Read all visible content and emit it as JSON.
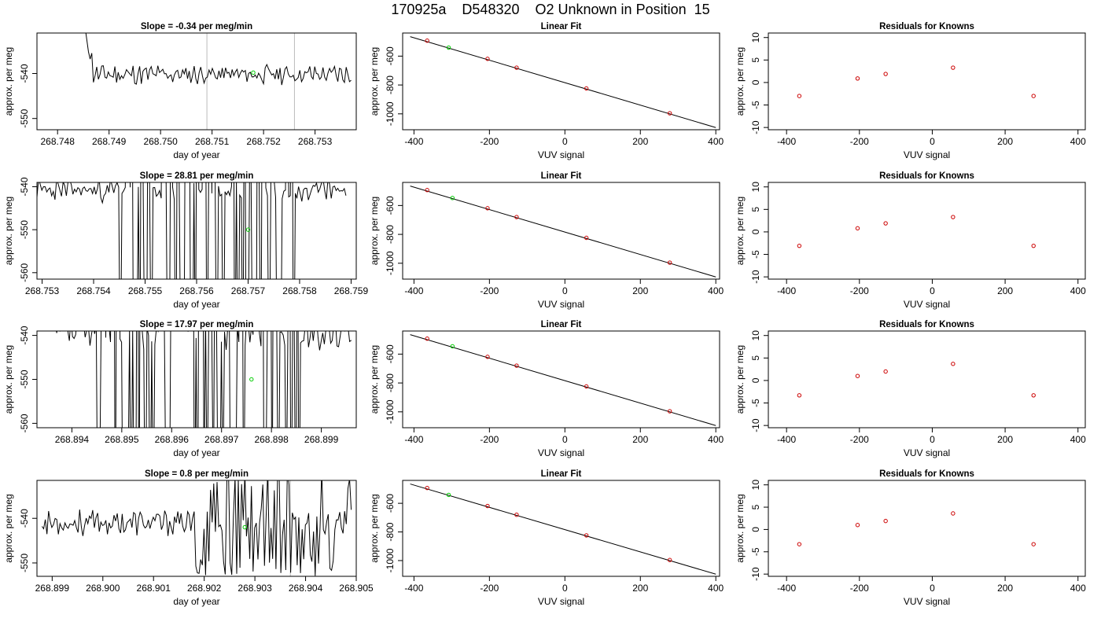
{
  "header": {
    "run": "170925a",
    "cylinder": "D548320",
    "label": "O2 Unknown in Position  15"
  },
  "colors": {
    "trace": "#000000",
    "known_point": "#cc0000",
    "unknown_point": "#00cc00",
    "guide_line": "#bbbbbb"
  },
  "chart_data": [
    {
      "type": "line",
      "title": "Slope =  -0.34  per meg/min",
      "xlabel": "day of year",
      "ylabel": "approx. per meg",
      "xlim": [
        268.7476,
        268.7538
      ],
      "ylim": [
        -552.5,
        -531.0
      ],
      "x_ticks": [
        "268.748",
        "268.749",
        "268.750",
        "268.751",
        "268.752",
        "268.753"
      ],
      "y_ticks": [
        "-540",
        "-550"
      ],
      "vlines": [
        268.7509,
        268.7526
      ],
      "unknown_point": {
        "x": 268.7518,
        "y": -539.8
      },
      "trace": {
        "x_start": 268.7486,
        "x_end": 268.7537,
        "n": 160,
        "center": -540.2,
        "amplitude": 1.8,
        "spike_amp": 0,
        "seed": 11,
        "lead_in": [
          -531.0,
          -536.0
        ]
      }
    },
    {
      "type": "line",
      "title": "Linear Fit",
      "xlabel": "VUV signal",
      "ylabel": "approx. per meg",
      "xlim": [
        -430,
        410
      ],
      "ylim": [
        -1110,
        -440
      ],
      "x_ticks": [
        "-400",
        "-200",
        "0",
        "200",
        "400"
      ],
      "y_ticks": [
        "-600",
        "-800",
        "-1000"
      ],
      "fit_line": {
        "x": [
          -410,
          400
        ],
        "y": [
          -465,
          -1095
        ]
      },
      "knowns": {
        "x": [
          -365,
          -205,
          -128,
          57,
          278
        ],
        "y": [
          -493,
          -619,
          -680,
          -824,
          -996
        ]
      },
      "unknown": {
        "x": -308,
        "y": -541
      }
    },
    {
      "type": "scatter",
      "title": "Residuals for Knowns",
      "xlabel": "VUV signal",
      "ylabel": "approx. per meg",
      "xlim": [
        -450,
        420
      ],
      "ylim": [
        -10.5,
        11
      ],
      "x_ticks": [
        "-400",
        "-200",
        "0",
        "200",
        "400"
      ],
      "y_ticks": [
        "-10",
        "-5",
        "0",
        "5",
        "10"
      ],
      "points": {
        "x": [
          -365,
          -205,
          -128,
          57,
          278
        ],
        "y": [
          -3.0,
          0.9,
          1.9,
          3.3,
          -3.0
        ]
      }
    },
    {
      "type": "line",
      "title": "Slope =  28.81  per meg/min",
      "xlabel": "day of year",
      "ylabel": "approx. per meg",
      "xlim": [
        268.7529,
        268.7591
      ],
      "ylim": [
        -561.5,
        -539.0
      ],
      "x_ticks": [
        "268.753",
        "268.754",
        "268.755",
        "268.756",
        "268.757",
        "268.758",
        "268.759"
      ],
      "y_ticks": [
        "-540",
        "-550",
        "-560"
      ],
      "vlines": [],
      "unknown_point": {
        "x": 268.757,
        "y": -550.0
      },
      "trace": {
        "x_start": 268.7529,
        "x_end": 268.7589,
        "n": 190,
        "center": -540.8,
        "amplitude": 2.2,
        "spike_amp": 60,
        "seed": 23,
        "spike_from": 268.7545,
        "spike_to": 268.7579
      }
    },
    {
      "type": "line",
      "title": "Linear Fit",
      "xlabel": "VUV signal",
      "ylabel": "approx. per meg",
      "xlim": [
        -430,
        410
      ],
      "ylim": [
        -1110,
        -440
      ],
      "x_ticks": [
        "-400",
        "-200",
        "0",
        "200",
        "400"
      ],
      "y_ticks": [
        "-600",
        "-800",
        "-1000"
      ],
      "fit_line": {
        "x": [
          -410,
          400
        ],
        "y": [
          -465,
          -1095
        ]
      },
      "knowns": {
        "x": [
          -365,
          -205,
          -128,
          57,
          278
        ],
        "y": [
          -493,
          -619,
          -680,
          -824,
          -996
        ]
      },
      "unknown": {
        "x": -298,
        "y": -548
      }
    },
    {
      "type": "scatter",
      "title": "Residuals for Knowns",
      "xlabel": "VUV signal",
      "ylabel": "approx. per meg",
      "xlim": [
        -450,
        420
      ],
      "ylim": [
        -10.5,
        11
      ],
      "x_ticks": [
        "-400",
        "-200",
        "0",
        "200",
        "400"
      ],
      "y_ticks": [
        "-10",
        "-5",
        "0",
        "5",
        "10"
      ],
      "points": {
        "x": [
          -365,
          -205,
          -128,
          57,
          278
        ],
        "y": [
          -3.1,
          0.8,
          1.9,
          3.3,
          -3.1
        ]
      }
    },
    {
      "type": "line",
      "title": "Slope =  17.97  per meg/min",
      "xlabel": "day of year",
      "ylabel": "approx. per meg",
      "xlim": [
        268.8933,
        268.8997
      ],
      "ylim": [
        -561.0,
        -539.0
      ],
      "x_ticks": [
        "268.894",
        "268.895",
        "268.896",
        "268.897",
        "268.898",
        "268.899"
      ],
      "y_ticks": [
        "-540",
        "-550",
        "-560"
      ],
      "vlines": [],
      "unknown_point": {
        "x": 268.8976,
        "y": -550.0
      },
      "trace": {
        "x_start": 268.8936,
        "x_end": 268.8996,
        "n": 190,
        "center": -539.5,
        "amplitude": 3.0,
        "spike_amp": 60,
        "seed": 37,
        "spike_from": 268.8944,
        "spike_to": 268.8986
      }
    },
    {
      "type": "line",
      "title": "Linear Fit",
      "xlabel": "VUV signal",
      "ylabel": "approx. per meg",
      "xlim": [
        -430,
        410
      ],
      "ylim": [
        -1110,
        -440
      ],
      "x_ticks": [
        "-400",
        "-200",
        "0",
        "200",
        "400"
      ],
      "y_ticks": [
        "-600",
        "-800",
        "-1000"
      ],
      "fit_line": {
        "x": [
          -410,
          400
        ],
        "y": [
          -465,
          -1095
        ]
      },
      "knowns": {
        "x": [
          -365,
          -205,
          -128,
          57,
          278
        ],
        "y": [
          -493,
          -619,
          -680,
          -824,
          -996
        ]
      },
      "unknown": {
        "x": -298,
        "y": -546
      }
    },
    {
      "type": "scatter",
      "title": "Residuals for Knowns",
      "xlabel": "VUV signal",
      "ylabel": "approx. per meg",
      "xlim": [
        -450,
        420
      ],
      "ylim": [
        -10.5,
        11
      ],
      "x_ticks": [
        "-400",
        "-200",
        "0",
        "200",
        "400"
      ],
      "y_ticks": [
        "-10",
        "-5",
        "0",
        "5",
        "10"
      ],
      "points": {
        "x": [
          -365,
          -205,
          -128,
          57,
          278
        ],
        "y": [
          -3.3,
          1.0,
          2.0,
          3.7,
          -3.3
        ]
      }
    },
    {
      "type": "line",
      "title": "Slope =  0.8  per meg/min",
      "xlabel": "day of year",
      "ylabel": "approx. per meg",
      "xlim": [
        268.8987,
        268.905
      ],
      "ylim": [
        -553.0,
        -531.5
      ],
      "x_ticks": [
        "268.899",
        "268.900",
        "268.901",
        "268.902",
        "268.903",
        "268.904",
        "268.905"
      ],
      "y_ticks": [
        "-540",
        "-550"
      ],
      "vlines": [
        268.9037
      ],
      "unknown_point": {
        "x": 268.9028,
        "y": -542.0
      },
      "trace": {
        "x_start": 268.8988,
        "x_end": 268.9049,
        "n": 190,
        "center": -541.0,
        "amplitude": 2.3,
        "spike_amp": 12,
        "seed": 53,
        "spike_from": 268.9018,
        "spike_to": 268.905
      }
    },
    {
      "type": "line",
      "title": "Linear Fit",
      "xlabel": "VUV signal",
      "ylabel": "approx. per meg",
      "xlim": [
        -430,
        410
      ],
      "ylim": [
        -1110,
        -440
      ],
      "x_ticks": [
        "-400",
        "-200",
        "0",
        "200",
        "400"
      ],
      "y_ticks": [
        "-600",
        "-800",
        "-1000"
      ],
      "fit_line": {
        "x": [
          -410,
          400
        ],
        "y": [
          -465,
          -1095
        ]
      },
      "knowns": {
        "x": [
          -365,
          -205,
          -128,
          57,
          278
        ],
        "y": [
          -493,
          -619,
          -680,
          -824,
          -996
        ]
      },
      "unknown": {
        "x": -308,
        "y": -541
      }
    },
    {
      "type": "scatter",
      "title": "Residuals for Knowns",
      "xlabel": "VUV signal",
      "ylabel": "approx. per meg",
      "xlim": [
        -450,
        420
      ],
      "ylim": [
        -10.5,
        11
      ],
      "x_ticks": [
        "-400",
        "-200",
        "0",
        "200",
        "400"
      ],
      "y_ticks": [
        "-10",
        "-5",
        "0",
        "5",
        "10"
      ],
      "points": {
        "x": [
          -365,
          -205,
          -128,
          57,
          278
        ],
        "y": [
          -3.3,
          1.0,
          1.9,
          3.6,
          -3.3
        ]
      }
    }
  ]
}
